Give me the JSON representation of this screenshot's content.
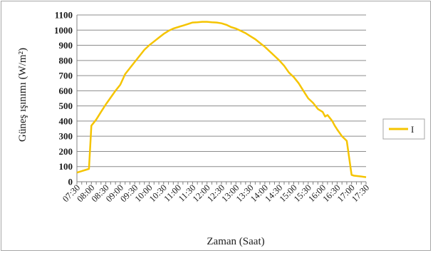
{
  "chart_data": {
    "type": "line",
    "title": "",
    "xlabel": "Zaman (Saat)",
    "ylabel": "Güneş ışınımı (W/m²)",
    "ylim": [
      0,
      1100
    ],
    "yticks": [
      0,
      100,
      200,
      300,
      400,
      500,
      600,
      700,
      800,
      900,
      1000,
      1100
    ],
    "xlim": [
      "07:30",
      "17:30"
    ],
    "xticks": [
      "07:30",
      "08:00",
      "08:30",
      "09:00",
      "09:30",
      "10:00",
      "10:30",
      "11:00",
      "11:30",
      "12:00",
      "12:30",
      "13:00",
      "13:30",
      "14:00",
      "14:30",
      "15:00",
      "15:30",
      "16:00",
      "16:30",
      "17:00",
      "17:30"
    ],
    "grid": true,
    "legend": "right",
    "series": [
      {
        "name": "I",
        "color": "#f5c400",
        "x": [
          "07:30",
          "07:40",
          "07:50",
          "07:55",
          "08:00",
          "08:10",
          "08:20",
          "08:30",
          "08:40",
          "08:50",
          "09:00",
          "09:10",
          "09:20",
          "09:30",
          "09:40",
          "09:50",
          "10:00",
          "10:10",
          "10:20",
          "10:30",
          "10:40",
          "10:50",
          "11:00",
          "11:10",
          "11:20",
          "11:30",
          "11:40",
          "11:50",
          "12:00",
          "12:10",
          "12:20",
          "12:30",
          "12:40",
          "12:50",
          "13:00",
          "13:10",
          "13:20",
          "13:30",
          "13:40",
          "13:50",
          "14:00",
          "14:10",
          "14:20",
          "14:30",
          "14:40",
          "14:50",
          "15:00",
          "15:10",
          "15:20",
          "15:30",
          "15:40",
          "15:50",
          "16:00",
          "16:05",
          "16:10",
          "16:15",
          "16:20",
          "16:25",
          "16:30",
          "16:40",
          "16:50",
          "17:00",
          "17:05",
          "17:10",
          "17:20",
          "17:30"
        ],
        "values": [
          60,
          70,
          80,
          85,
          370,
          410,
          460,
          510,
          555,
          600,
          640,
          710,
          750,
          790,
          830,
          870,
          900,
          925,
          950,
          975,
          995,
          1010,
          1020,
          1030,
          1040,
          1050,
          1052,
          1055,
          1055,
          1052,
          1050,
          1045,
          1035,
          1020,
          1010,
          995,
          980,
          960,
          940,
          915,
          890,
          860,
          830,
          800,
          765,
          720,
          690,
          650,
          600,
          550,
          520,
          480,
          460,
          430,
          440,
          420,
          400,
          370,
          345,
          300,
          270,
          45,
          40,
          38,
          35,
          30
        ]
      }
    ]
  }
}
